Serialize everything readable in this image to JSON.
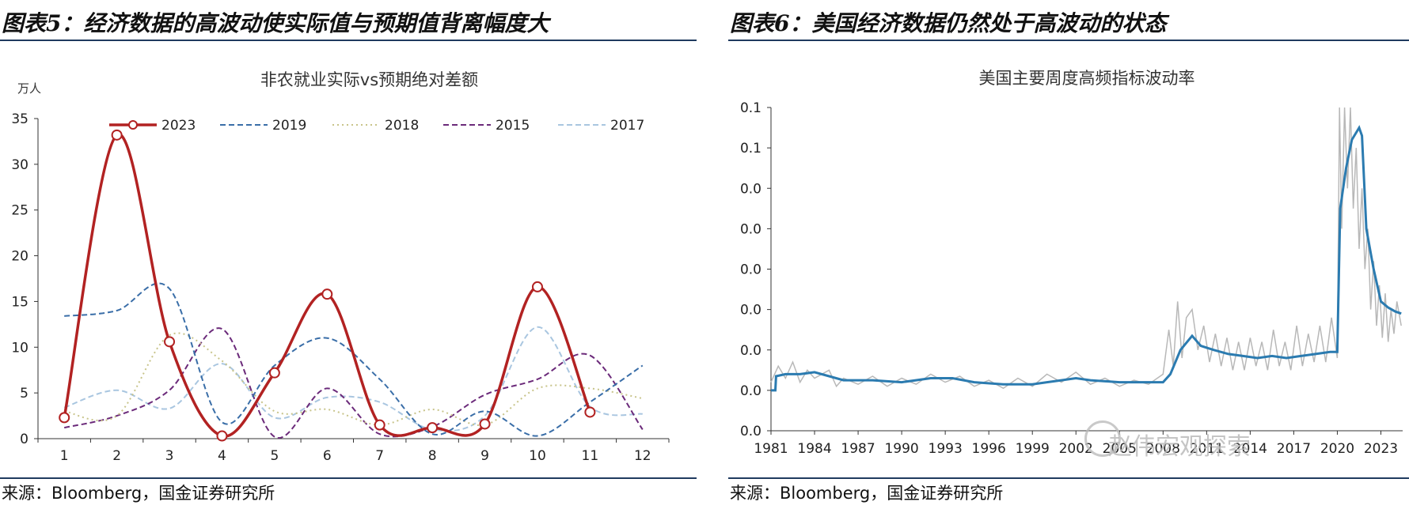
{
  "panels": {
    "left": {
      "figure_title": "图表5：经济数据的高波动使实际值与预期值背离幅度大",
      "source": "来源：Bloomberg，国金证券研究所"
    },
    "right": {
      "figure_title": "图表6：美国经济数据仍然处于高波动的状态",
      "source": "来源：Bloomberg，国金证券研究所"
    }
  },
  "watermark": "赵伟宏观探索",
  "colors": {
    "rule": "#1f3a5f",
    "s2023": "#b22222",
    "s2019": "#3a6ea8",
    "s2018": "#c8c48a",
    "s2015": "#6b2a7a",
    "s2017": "#a9c6e0",
    "vol_line": "#2b7bb0",
    "vol_raw": "#b8b8b8"
  },
  "chart_data": [
    {
      "type": "line",
      "title": "非农就业实际vs预期绝对差额",
      "unit_label": "万人",
      "x": [
        1,
        2,
        3,
        4,
        5,
        6,
        7,
        8,
        9,
        10,
        11,
        12
      ],
      "xlim": [
        0.5,
        12.5
      ],
      "ylim": [
        0,
        35
      ],
      "yticks": [
        0,
        5,
        10,
        15,
        20,
        25,
        30,
        35
      ],
      "legend_position": "top",
      "series": [
        {
          "name": "2023",
          "style": "solid-marker",
          "values": [
            2.3,
            33.2,
            10.6,
            0.3,
            7.2,
            15.8,
            1.5,
            1.2,
            1.6,
            16.6,
            2.9,
            null
          ]
        },
        {
          "name": "2019",
          "style": "dashed",
          "values": [
            13.4,
            14.0,
            16.4,
            1.8,
            8.0,
            11.0,
            6.5,
            0.5,
            3.0,
            0.3,
            4.0,
            8.0
          ]
        },
        {
          "name": "2018",
          "style": "dotted",
          "values": [
            3.0,
            2.5,
            11.3,
            8.5,
            3.0,
            3.2,
            1.5,
            3.2,
            1.5,
            5.5,
            5.5,
            4.4
          ]
        },
        {
          "name": "2015",
          "style": "dashed",
          "values": [
            1.2,
            2.5,
            5.3,
            12.0,
            0.2,
            5.5,
            0.5,
            1.3,
            4.8,
            6.5,
            9.1,
            1.0
          ]
        },
        {
          "name": "2017",
          "style": "dashed",
          "values": [
            3.4,
            5.3,
            3.3,
            8.2,
            2.3,
            4.5,
            4.0,
            1.0,
            2.5,
            12.2,
            3.5,
            2.7
          ]
        }
      ]
    },
    {
      "type": "line",
      "title": "美国主要周度高频指标波动率",
      "x_ticks": [
        "1981",
        "1984",
        "1987",
        "1990",
        "1993",
        "1996",
        "1999",
        "2002",
        "2005",
        "2008",
        "2011",
        "2014",
        "2017",
        "2020",
        "2023"
      ],
      "y_ticks": [
        "0.0",
        "0.0",
        "0.0",
        "0.0",
        "0.0",
        "0.0",
        "0.0",
        "0.1",
        "0.1"
      ],
      "xlim": [
        1981,
        2024.5
      ],
      "ylim": [
        0,
        8
      ],
      "series": [
        {
          "name": "smoothed",
          "points": [
            [
              1981,
              1
            ],
            [
              1981.3,
              1
            ],
            [
              1981.35,
              1.35
            ],
            [
              1982,
              1.4
            ],
            [
              1983,
              1.4
            ],
            [
              1984,
              1.45
            ],
            [
              1985,
              1.35
            ],
            [
              1986,
              1.25
            ],
            [
              1988,
              1.25
            ],
            [
              1990,
              1.2
            ],
            [
              1992,
              1.3
            ],
            [
              1993.5,
              1.3
            ],
            [
              1995,
              1.2
            ],
            [
              1997,
              1.15
            ],
            [
              1999,
              1.15
            ],
            [
              2000,
              1.2
            ],
            [
              2001,
              1.25
            ],
            [
              2002,
              1.3
            ],
            [
              2003,
              1.25
            ],
            [
              2005,
              1.2
            ],
            [
              2007,
              1.2
            ],
            [
              2008,
              1.2
            ],
            [
              2008.5,
              1.4
            ],
            [
              2009.2,
              2
            ],
            [
              2010,
              2.35
            ],
            [
              2010.6,
              2.1
            ],
            [
              2011.5,
              2.0
            ],
            [
              2012.5,
              1.9
            ],
            [
              2013.5,
              1.85
            ],
            [
              2014.5,
              1.8
            ],
            [
              2015.5,
              1.85
            ],
            [
              2016.5,
              1.8
            ],
            [
              2017.5,
              1.85
            ],
            [
              2018.5,
              1.9
            ],
            [
              2019.5,
              1.95
            ],
            [
              2020,
              1.95
            ],
            [
              2020.2,
              5.5
            ],
            [
              2020.6,
              6.5
            ],
            [
              2021,
              7.2
            ],
            [
              2021.5,
              7.5
            ],
            [
              2021.7,
              7.3
            ],
            [
              2022,
              5
            ],
            [
              2022.5,
              4
            ],
            [
              2023,
              3.2
            ],
            [
              2023.5,
              3.05
            ],
            [
              2024,
              2.95
            ],
            [
              2024.4,
              2.9
            ]
          ]
        },
        {
          "name": "raw",
          "points": [
            [
              1981,
              1.2
            ],
            [
              1981.5,
              1.6
            ],
            [
              1982,
              1.3
            ],
            [
              1982.5,
              1.7
            ],
            [
              1983,
              1.2
            ],
            [
              1983.5,
              1.5
            ],
            [
              1984,
              1.3
            ],
            [
              1985,
              1.5
            ],
            [
              1985.5,
              1.1
            ],
            [
              1986,
              1.3
            ],
            [
              1987,
              1.15
            ],
            [
              1988,
              1.35
            ],
            [
              1989,
              1.1
            ],
            [
              1990,
              1.3
            ],
            [
              1991,
              1.15
            ],
            [
              1992,
              1.4
            ],
            [
              1993,
              1.2
            ],
            [
              1994,
              1.35
            ],
            [
              1995,
              1.1
            ],
            [
              1996,
              1.25
            ],
            [
              1997,
              1.05
            ],
            [
              1998,
              1.3
            ],
            [
              1999,
              1.1
            ],
            [
              2000,
              1.4
            ],
            [
              2001,
              1.2
            ],
            [
              2002,
              1.45
            ],
            [
              2003,
              1.15
            ],
            [
              2004,
              1.3
            ],
            [
              2005,
              1.1
            ],
            [
              2006,
              1.25
            ],
            [
              2007,
              1.15
            ],
            [
              2008,
              1.4
            ],
            [
              2008.4,
              2.5
            ],
            [
              2008.7,
              1.6
            ],
            [
              2009,
              3.2
            ],
            [
              2009.3,
              1.8
            ],
            [
              2009.6,
              2.8
            ],
            [
              2010,
              3.0
            ],
            [
              2010.4,
              2.0
            ],
            [
              2010.8,
              2.6
            ],
            [
              2011.2,
              1.7
            ],
            [
              2011.6,
              2.4
            ],
            [
              2012,
              1.6
            ],
            [
              2012.4,
              2.3
            ],
            [
              2012.8,
              1.5
            ],
            [
              2013.2,
              2.2
            ],
            [
              2013.6,
              1.5
            ],
            [
              2014,
              2.3
            ],
            [
              2014.4,
              1.6
            ],
            [
              2014.8,
              2.2
            ],
            [
              2015.2,
              1.5
            ],
            [
              2015.6,
              2.5
            ],
            [
              2016,
              1.6
            ],
            [
              2016.4,
              2.2
            ],
            [
              2016.8,
              1.5
            ],
            [
              2017.2,
              2.6
            ],
            [
              2017.6,
              1.6
            ],
            [
              2018,
              2.4
            ],
            [
              2018.4,
              1.7
            ],
            [
              2018.8,
              2.6
            ],
            [
              2019.2,
              1.7
            ],
            [
              2019.6,
              2.8
            ],
            [
              2020,
              1.8
            ],
            [
              2020.15,
              8
            ],
            [
              2020.3,
              5
            ],
            [
              2020.5,
              8
            ],
            [
              2020.7,
              6
            ],
            [
              2020.9,
              8
            ],
            [
              2021.1,
              5.5
            ],
            [
              2021.3,
              7
            ],
            [
              2021.5,
              4.5
            ],
            [
              2021.7,
              6
            ],
            [
              2021.9,
              4
            ],
            [
              2022.1,
              5
            ],
            [
              2022.3,
              3
            ],
            [
              2022.5,
              4.2
            ],
            [
              2022.7,
              2.6
            ],
            [
              2022.9,
              3.6
            ],
            [
              2023.1,
              2.3
            ],
            [
              2023.3,
              3.4
            ],
            [
              2023.5,
              2.2
            ],
            [
              2023.7,
              3.0
            ],
            [
              2023.9,
              2.4
            ],
            [
              2024.1,
              3.2
            ],
            [
              2024.4,
              2.6
            ]
          ]
        }
      ]
    }
  ]
}
